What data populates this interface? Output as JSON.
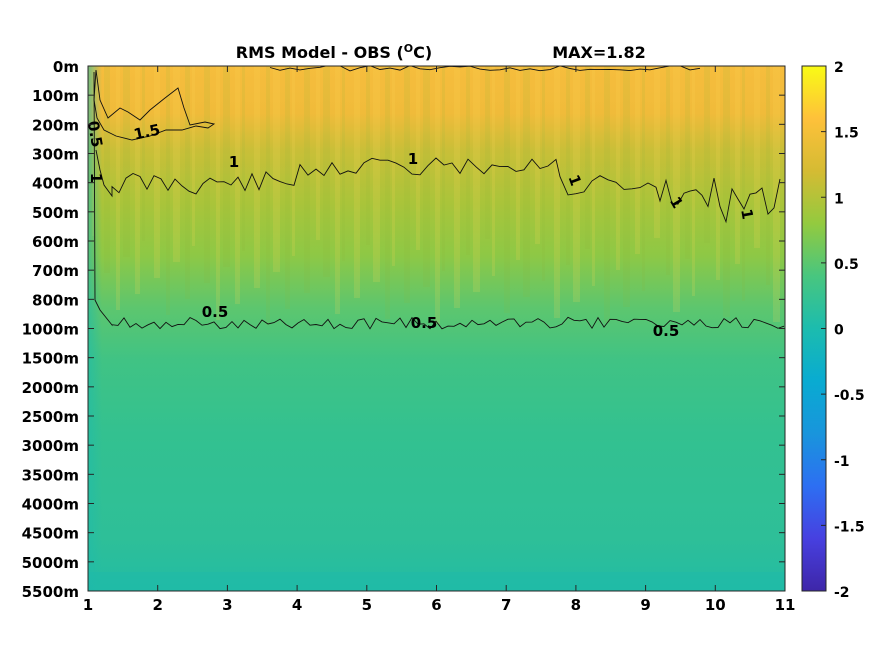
{
  "chart_data": {
    "type": "heatmap",
    "title": "RMS Model - OBS (",
    "title_superscript": "O",
    "title_unit": "C)",
    "max_label": "MAX=1.82",
    "xlabel": "",
    "ylabel": "",
    "x_ticks": [
      "1",
      "2",
      "3",
      "4",
      "5",
      "6",
      "7",
      "8",
      "9",
      "10",
      "11"
    ],
    "y_ticks": [
      "0m",
      "100m",
      "200m",
      "300m",
      "400m",
      "500m",
      "600m",
      "700m",
      "800m",
      "1000m",
      "1500m",
      "2000m",
      "2500m",
      "3000m",
      "3500m",
      "4000m",
      "4500m",
      "5000m",
      "5500m"
    ],
    "xlim": [
      1,
      11
    ],
    "colorbar": {
      "ticks": [
        "2",
        "1.5",
        "1",
        "0.5",
        "0",
        "-0.5",
        "-1",
        "-1.5",
        "-2"
      ],
      "range": [
        -2,
        2
      ],
      "colormap": [
        "#3e26a8",
        "#4740e0",
        "#2d6ff2",
        "#1995dc",
        "#09abd1",
        "#1cbcae",
        "#48c67f",
        "#93ca3f",
        "#d5bb33",
        "#fec13a",
        "#f9fb15"
      ]
    },
    "contour_labels": [
      "1.5",
      "1",
      "0.5",
      "1",
      "1",
      "1",
      "1",
      "1",
      "0.5",
      "0.5",
      "0.5"
    ],
    "depth_profile": [
      {
        "depth": "0m",
        "value": 1.45
      },
      {
        "depth": "100m",
        "value": 1.5
      },
      {
        "depth": "200m",
        "value": 1.35
      },
      {
        "depth": "300m",
        "value": 1.15
      },
      {
        "depth": "400m",
        "value": 0.95
      },
      {
        "depth": "500m",
        "value": 0.85
      },
      {
        "depth": "600m",
        "value": 0.8
      },
      {
        "depth": "700m",
        "value": 0.72
      },
      {
        "depth": "800m",
        "value": 0.62
      },
      {
        "depth": "1000m",
        "value": 0.5
      },
      {
        "depth": "1500m",
        "value": 0.4
      },
      {
        "depth": "2000m",
        "value": 0.35
      },
      {
        "depth": "2500m",
        "value": 0.32
      },
      {
        "depth": "3000m",
        "value": 0.3
      },
      {
        "depth": "3500m",
        "value": 0.3
      },
      {
        "depth": "4000m",
        "value": 0.28
      },
      {
        "depth": "4500m",
        "value": 0.27
      },
      {
        "depth": "5000m",
        "value": 0.25
      },
      {
        "depth": "5500m",
        "value": 0.2
      }
    ],
    "grid": false
  }
}
